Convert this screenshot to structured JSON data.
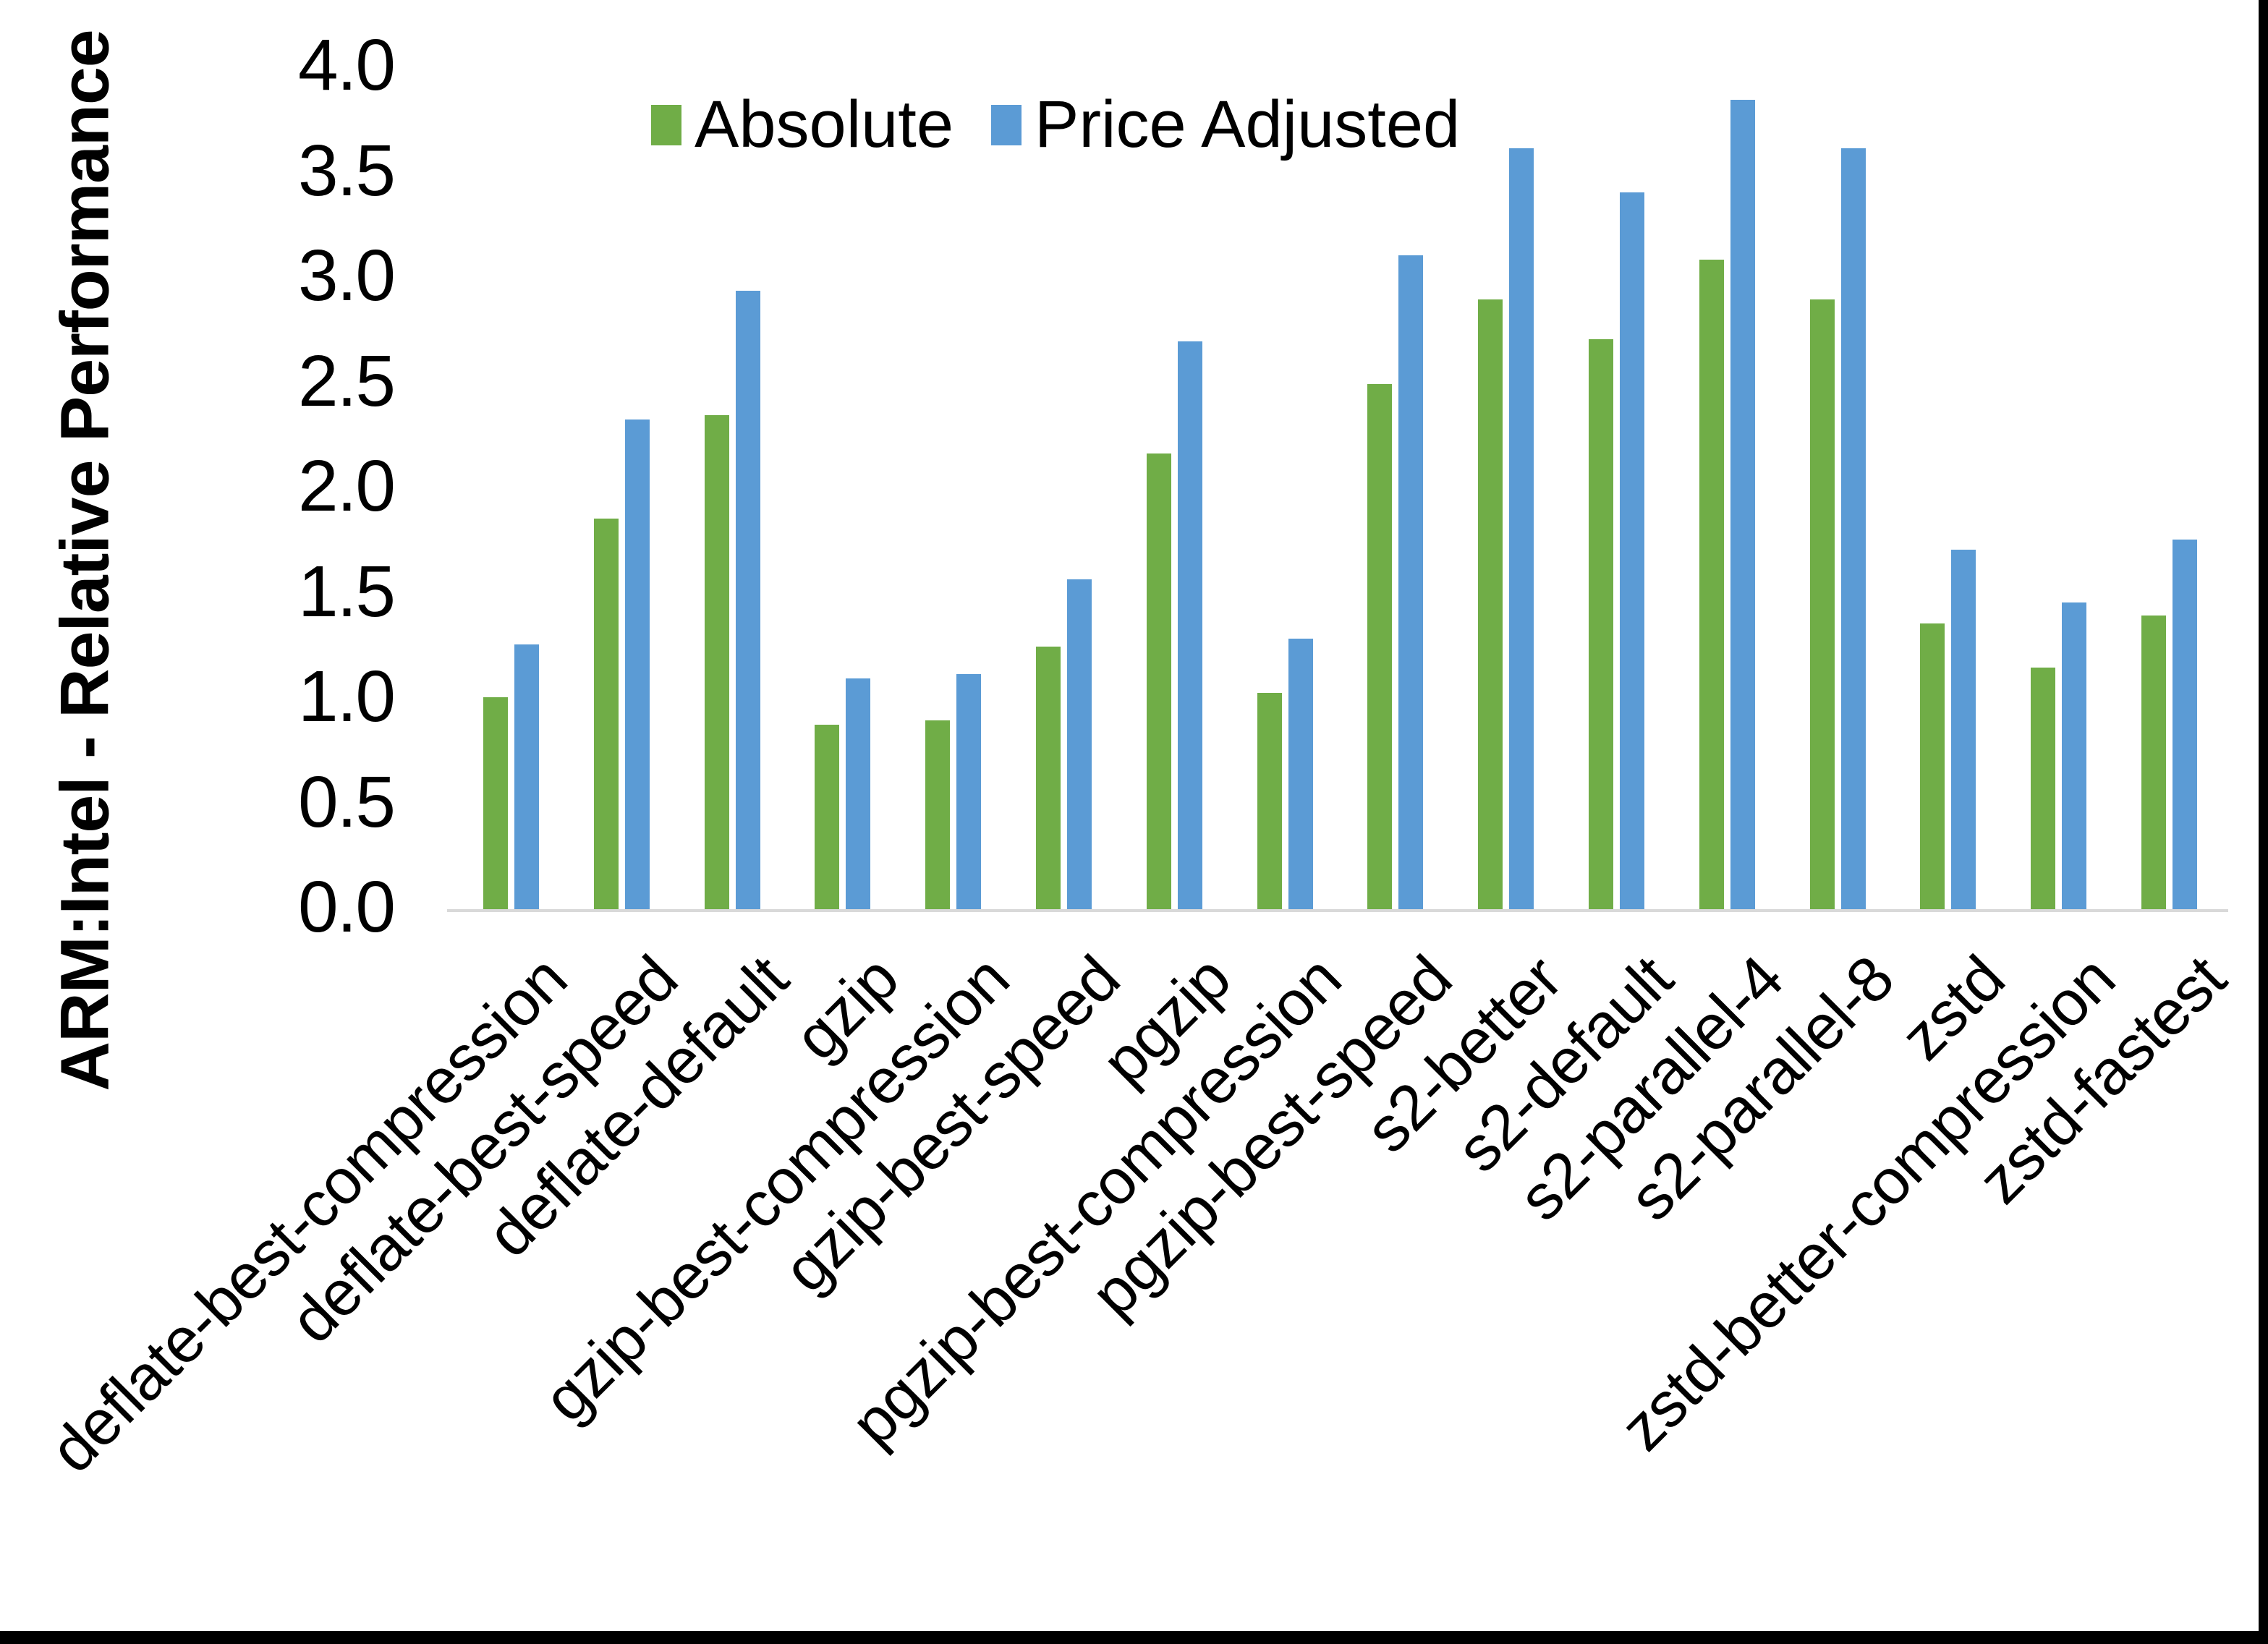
{
  "chart_data": {
    "type": "bar",
    "title": "",
    "xlabel": "",
    "ylabel": "ARM:Intel - Relative Performance",
    "ylim": [
      0.0,
      4.0
    ],
    "ytick_step": 0.5,
    "ytick_labels": [
      "0.0",
      "0.5",
      "1.0",
      "1.5",
      "2.0",
      "2.5",
      "3.0",
      "3.5",
      "4.0"
    ],
    "grid": false,
    "legend_position": "top-center",
    "legend_entries": [
      "Absolute",
      "Price Adjusted"
    ],
    "categories": [
      "deflate-best-compression",
      "deflate-best-speed",
      "deflate-default",
      "gzip",
      "gzip-best-compression",
      "gzip-best-speed",
      "pgzip",
      "pgzip-best-compression",
      "pgzip-best-speed",
      "s2-better",
      "s2-default",
      "s2-parallel-4",
      "s2-parallel-8",
      "zstd",
      "zstd-better-compression",
      "zstd-fastest"
    ],
    "series": [
      {
        "name": "Absolute",
        "color": "#70AD47",
        "values": [
          1.01,
          1.86,
          2.35,
          0.88,
          0.9,
          1.25,
          2.17,
          1.03,
          2.5,
          2.9,
          2.71,
          3.09,
          2.9,
          1.36,
          1.15,
          1.4
        ]
      },
      {
        "name": "Price Adjusted",
        "color": "#5B9BD5",
        "values": [
          1.26,
          2.33,
          2.94,
          1.1,
          1.12,
          1.57,
          2.7,
          1.29,
          3.11,
          3.62,
          3.41,
          3.85,
          3.62,
          1.71,
          1.46,
          1.76
        ]
      }
    ],
    "axis_line_color": "#D9D9D9",
    "text_color": "#000000",
    "background_color": "#FFFFFF",
    "frame_border_color": "#000000"
  }
}
